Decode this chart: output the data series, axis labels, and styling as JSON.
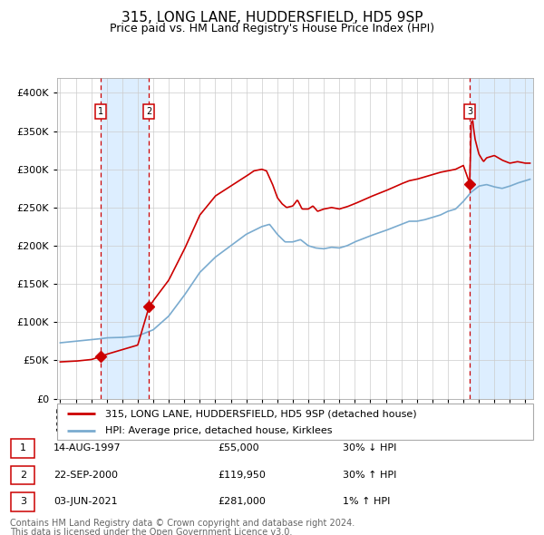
{
  "title": "315, LONG LANE, HUDDERSFIELD, HD5 9SP",
  "subtitle": "Price paid vs. HM Land Registry's House Price Index (HPI)",
  "ylim": [
    0,
    420000
  ],
  "yticks": [
    0,
    50000,
    100000,
    150000,
    200000,
    250000,
    300000,
    350000,
    400000
  ],
  "ytick_labels": [
    "£0",
    "£50K",
    "£100K",
    "£150K",
    "£200K",
    "£250K",
    "£300K",
    "£350K",
    "£400K"
  ],
  "xlim_start": 1994.8,
  "xlim_end": 2025.5,
  "sale_dates": [
    1997.617,
    2000.728,
    2021.419
  ],
  "sale_prices": [
    55000,
    119950,
    281000
  ],
  "sale_labels": [
    "1",
    "2",
    "3"
  ],
  "transactions": [
    {
      "num": "1",
      "date": "14-AUG-1997",
      "price": "£55,000",
      "hpi": "30% ↓ HPI"
    },
    {
      "num": "2",
      "date": "22-SEP-2000",
      "price": "£119,950",
      "hpi": "30% ↑ HPI"
    },
    {
      "num": "3",
      "date": "03-JUN-2021",
      "price": "£281,000",
      "hpi": "1% ↑ HPI"
    }
  ],
  "legend_line1": "315, LONG LANE, HUDDERSFIELD, HD5 9SP (detached house)",
  "legend_line2": "HPI: Average price, detached house, Kirklees",
  "footer1": "Contains HM Land Registry data © Crown copyright and database right 2024.",
  "footer2": "This data is licensed under the Open Government Licence v3.0.",
  "red_color": "#cc0000",
  "blue_color": "#7aabcf",
  "bg_highlight_color": "#ddeeff",
  "grid_color": "#cccccc",
  "title_fontsize": 11,
  "subtitle_fontsize": 9,
  "axis_fontsize": 8,
  "legend_fontsize": 8,
  "footer_fontsize": 7
}
